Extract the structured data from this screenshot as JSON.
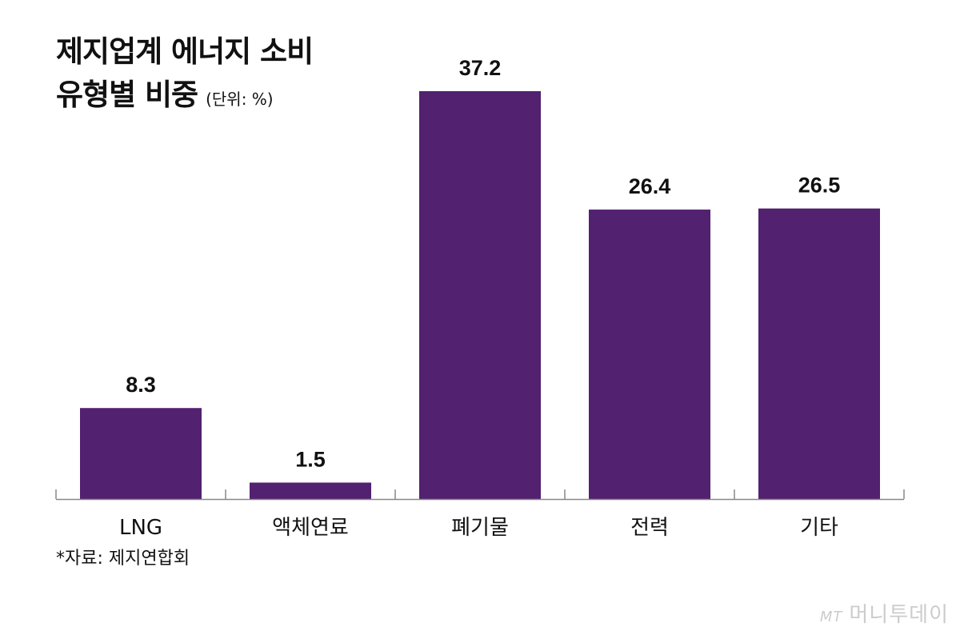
{
  "title_line1": "제지업계 에너지 소비",
  "title_line2": "유형별 비중",
  "unit": "(단위: %)",
  "source": "*자료: 제지연합회",
  "watermark": {
    "logo": "MT",
    "name": "머니투데이"
  },
  "colors": {
    "bar": "#52216f",
    "axis": "#888888"
  },
  "chart_data": {
    "type": "bar",
    "title": "제지업계 에너지 소비 유형별 비중",
    "unit": "%",
    "categories": [
      "LNG",
      "액체연료",
      "폐기물",
      "전력",
      "기타"
    ],
    "values": [
      8.3,
      1.5,
      37.2,
      26.4,
      26.5
    ],
    "data_labels": [
      "8.3",
      "1.5",
      "37.2",
      "26.4",
      "26.5"
    ],
    "ylim": [
      0,
      37.2
    ],
    "grid": false,
    "legend": "none"
  }
}
